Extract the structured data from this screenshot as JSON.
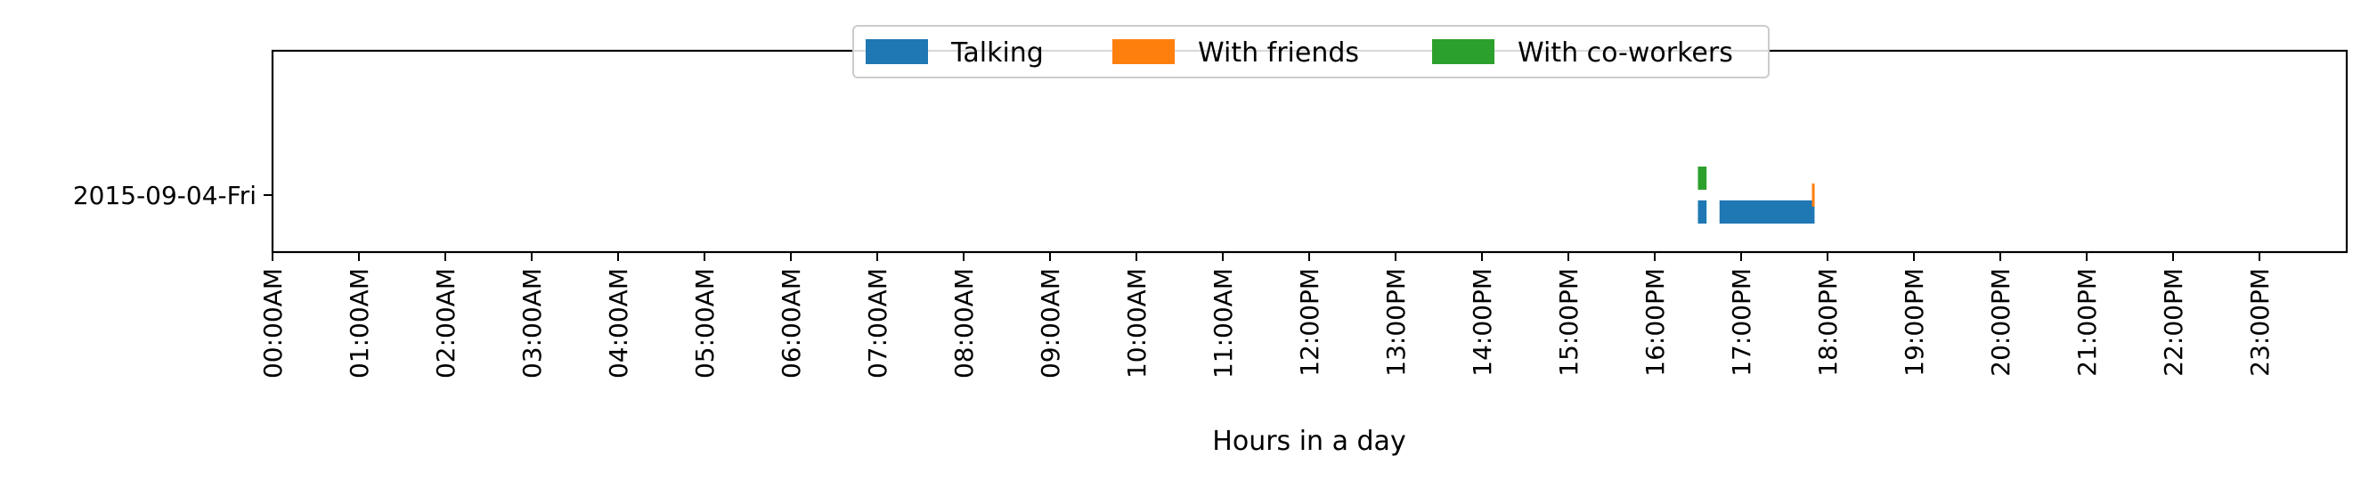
{
  "chart_data": {
    "type": "bar",
    "orientation": "horizontal-broken-bars",
    "title": "",
    "xlabel": "Hours in a day",
    "ylabel": "",
    "xlim": [
      0,
      24
    ],
    "x_ticks": [
      "00:00AM",
      "01:00AM",
      "02:00AM",
      "03:00AM",
      "04:00AM",
      "05:00AM",
      "06:00AM",
      "07:00AM",
      "08:00AM",
      "09:00AM",
      "10:00AM",
      "11:00AM",
      "12:00PM",
      "13:00PM",
      "14:00PM",
      "15:00PM",
      "16:00PM",
      "17:00PM",
      "18:00PM",
      "19:00PM",
      "20:00PM",
      "21:00PM",
      "22:00PM",
      "23:00PM"
    ],
    "categories": [
      "2015-09-04-Fri"
    ],
    "legend_position": "top-center",
    "grid": false,
    "series": [
      {
        "name": "Talking",
        "color": "#1f77b4",
        "intervals": [
          {
            "category": "2015-09-04-Fri",
            "start": 16.5,
            "end": 16.6
          },
          {
            "category": "2015-09-04-Fri",
            "start": 16.75,
            "end": 17.85
          }
        ]
      },
      {
        "name": "With friends",
        "color": "#ff7f0e",
        "intervals": [
          {
            "category": "2015-09-04-Fri",
            "start": 17.82,
            "end": 17.85
          }
        ]
      },
      {
        "name": "With co-workers",
        "color": "#2ca02c",
        "intervals": [
          {
            "category": "2015-09-04-Fri",
            "start": 16.5,
            "end": 16.6
          }
        ]
      }
    ]
  }
}
